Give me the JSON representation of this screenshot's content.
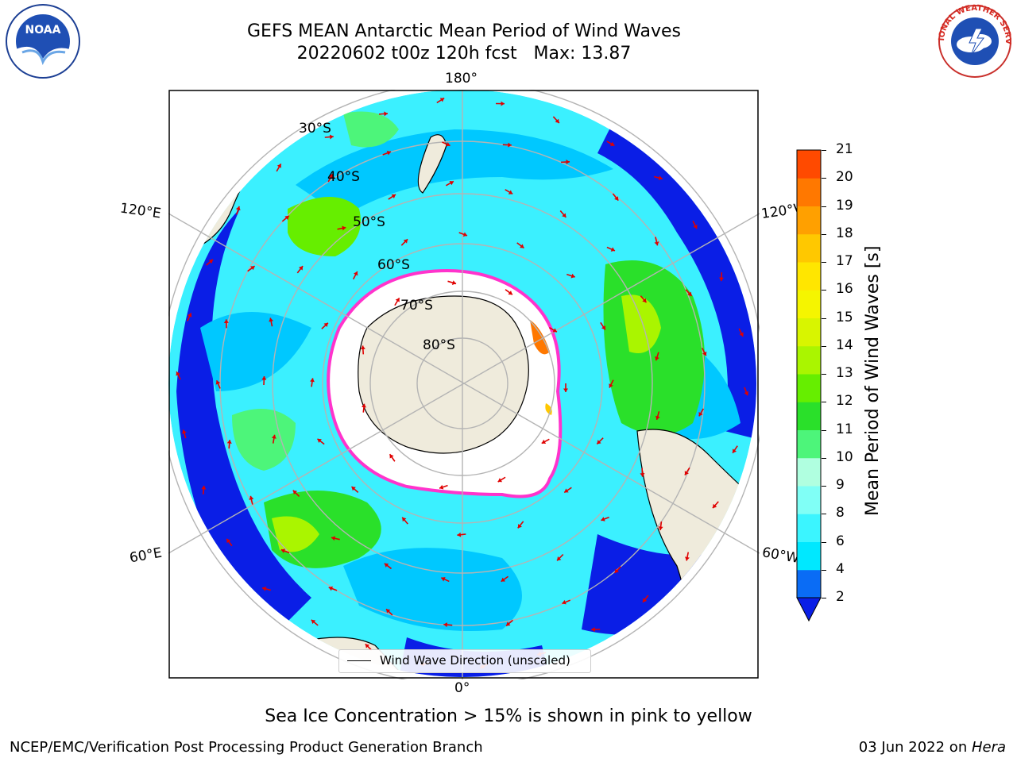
{
  "title": {
    "line1": "GEFS MEAN Antarctic Mean Period of Wind Waves",
    "line2": "20220602 t00z 120h fcst   Max: 13.87"
  },
  "logos": {
    "left": "NOAA",
    "right": "NATIONAL WEATHER SERVICE"
  },
  "map": {
    "longitude_labels": {
      "top": "180°",
      "bottom": "0°",
      "left_upper": "120°E",
      "left_lower": "60°E",
      "right_upper": "120°W",
      "right_lower": "60°W"
    },
    "latitude_labels": [
      "30°S",
      "40°S",
      "50°S",
      "60°S",
      "70°S",
      "80°S"
    ],
    "colors": {
      "land": "#efebdc",
      "ocean_low": "#0a1ee6",
      "ocean_mid": "#00d5ff",
      "ice_edge": "#ff33cc"
    }
  },
  "legend": {
    "label": "Wind Wave Direction (unscaled)"
  },
  "colorbar": {
    "label": "Mean Period of Wind Waves [s]",
    "ticks": [
      "2",
      "4",
      "6",
      "8",
      "9",
      "10",
      "11",
      "12",
      "13",
      "14",
      "15",
      "16",
      "17",
      "18",
      "19",
      "20",
      "21"
    ],
    "colors": [
      "#0a6cf5",
      "#00e8ff",
      "#3bf5ff",
      "#80fff6",
      "#b0ffe0",
      "#4df57a",
      "#2ae02a",
      "#66ee00",
      "#aaf500",
      "#d8f500",
      "#f5f500",
      "#ffe600",
      "#ffc800",
      "#ffa000",
      "#ff7800",
      "#ff4a00",
      "#ff1a00",
      "#f50000"
    ]
  },
  "caption": "Sea Ice Concentration > 15% is shown in pink to yellow",
  "footer": {
    "left": "NCEP/EMC/Verification Post Processing Product Generation Branch",
    "right_date": "03 Jun 2022 on ",
    "right_host": "Hera"
  }
}
